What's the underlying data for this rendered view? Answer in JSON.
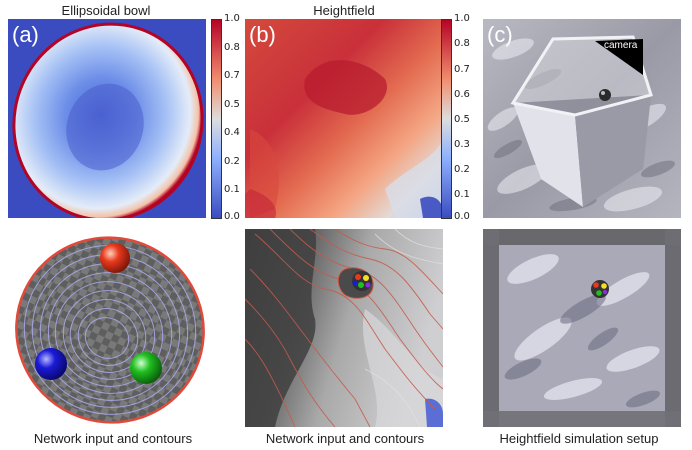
{
  "panels": [
    {
      "letter": "(a)",
      "title": "Ellipsoidal bowl",
      "colorbar_ticks": [
        "1.0",
        "0.8",
        "0.7",
        "0.5",
        "0.4",
        "0.2",
        "0.1",
        "0.0"
      ],
      "caption": "Network input and contours"
    },
    {
      "letter": "(b)",
      "title": "Heightfield",
      "colorbar_ticks": [
        "1.0",
        "0.8",
        "0.7",
        "0.6",
        "0.5",
        "0.3",
        "0.2",
        "0.1",
        "0.0"
      ],
      "caption": "Network input and contours"
    },
    {
      "letter": "(c)",
      "title": "",
      "camera_label": "camera",
      "caption": "Heightfield simulation setup"
    }
  ],
  "colors": {
    "cool": "#3b4cc0",
    "neutral": "#dddddd",
    "warm": "#b40426",
    "ball_red": "#e8391c",
    "ball_blue": "#1a1ad8",
    "ball_green": "#1fbf1f"
  }
}
